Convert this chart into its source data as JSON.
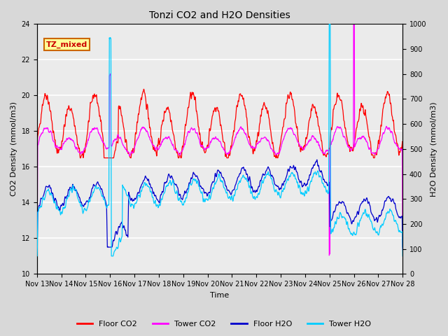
{
  "title": "Tonzi CO2 and H2O Densities",
  "xlabel": "Time",
  "ylabel_left": "CO2 Density (mmol/m3)",
  "ylabel_right": "H2O Density (mmol/m3)",
  "ylim_left": [
    10,
    24
  ],
  "ylim_right": [
    0,
    1000
  ],
  "yticks_left": [
    10,
    12,
    14,
    16,
    18,
    20,
    22,
    24
  ],
  "yticks_right": [
    0,
    100,
    200,
    300,
    400,
    500,
    600,
    700,
    800,
    900,
    1000
  ],
  "xtick_labels": [
    "Nov 13",
    "Nov 14",
    "Nov 15",
    "Nov 16",
    "Nov 17",
    "Nov 18",
    "Nov 19",
    "Nov 20",
    "Nov 21",
    "Nov 22",
    "Nov 23",
    "Nov 24",
    "Nov 25",
    "Nov 26",
    "Nov 27",
    "Nov 28"
  ],
  "annotation_text": "TZ_mixed",
  "annotation_color": "#cc0000",
  "annotation_bg": "#ffff99",
  "annotation_border": "#cc6600",
  "colors": {
    "floor_co2": "#ff0000",
    "tower_co2": "#ff00ff",
    "floor_h2o": "#0000cc",
    "tower_h2o": "#00ccff"
  },
  "legend_labels": [
    "Floor CO2",
    "Tower CO2",
    "Floor H2O",
    "Tower H2O"
  ],
  "background_color": "#d8d8d8",
  "plot_bg": "#ebebeb",
  "grid_color": "#ffffff",
  "seed": 42,
  "n_days": 15,
  "pts_per_day": 96
}
